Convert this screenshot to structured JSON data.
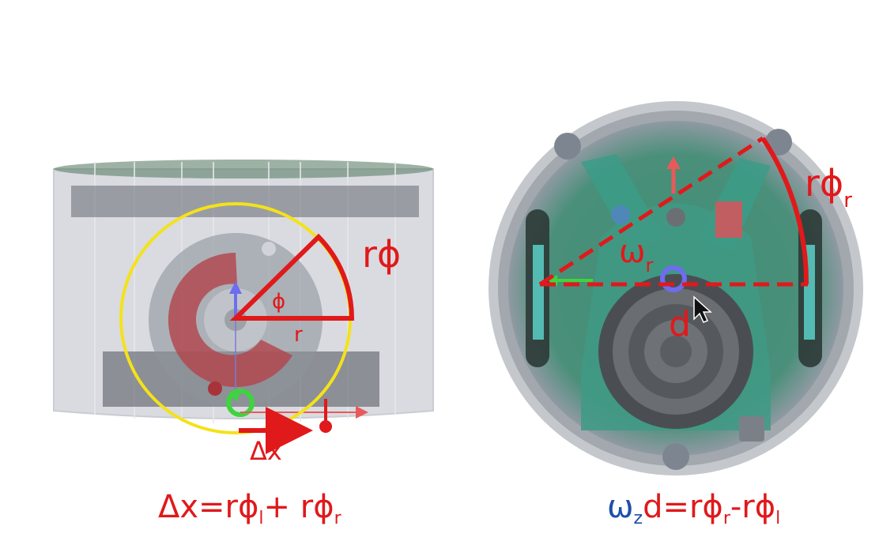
{
  "colors": {
    "annotation_red": "#e0191b",
    "wheel_circle_yellow": "#f4e21a",
    "omega_blue": "#1f4fa8",
    "robot_body_gray": "#9aa0a8",
    "pcb_green": "#3d8a70"
  },
  "left_view": {
    "arc_label_prefix": "r",
    "arc_label_symbol": "ϕ",
    "angle_label": "ϕ",
    "radius_label": "r",
    "displacement_label": "Δx"
  },
  "right_view": {
    "arc_label_prefix": "rϕ",
    "arc_label_sub": "r",
    "omega_label": "ω",
    "omega_sub": "r",
    "distance_label": "d"
  },
  "equations": {
    "left": {
      "part1": "Δx=rϕ",
      "sub1": "l",
      "part2": "+ rϕ",
      "sub2": "r"
    },
    "right": {
      "omega": "ω",
      "omega_sub": "z",
      "part1": "d=rϕ",
      "sub1": "r",
      "part2": "-rϕ",
      "sub2": "l"
    }
  }
}
